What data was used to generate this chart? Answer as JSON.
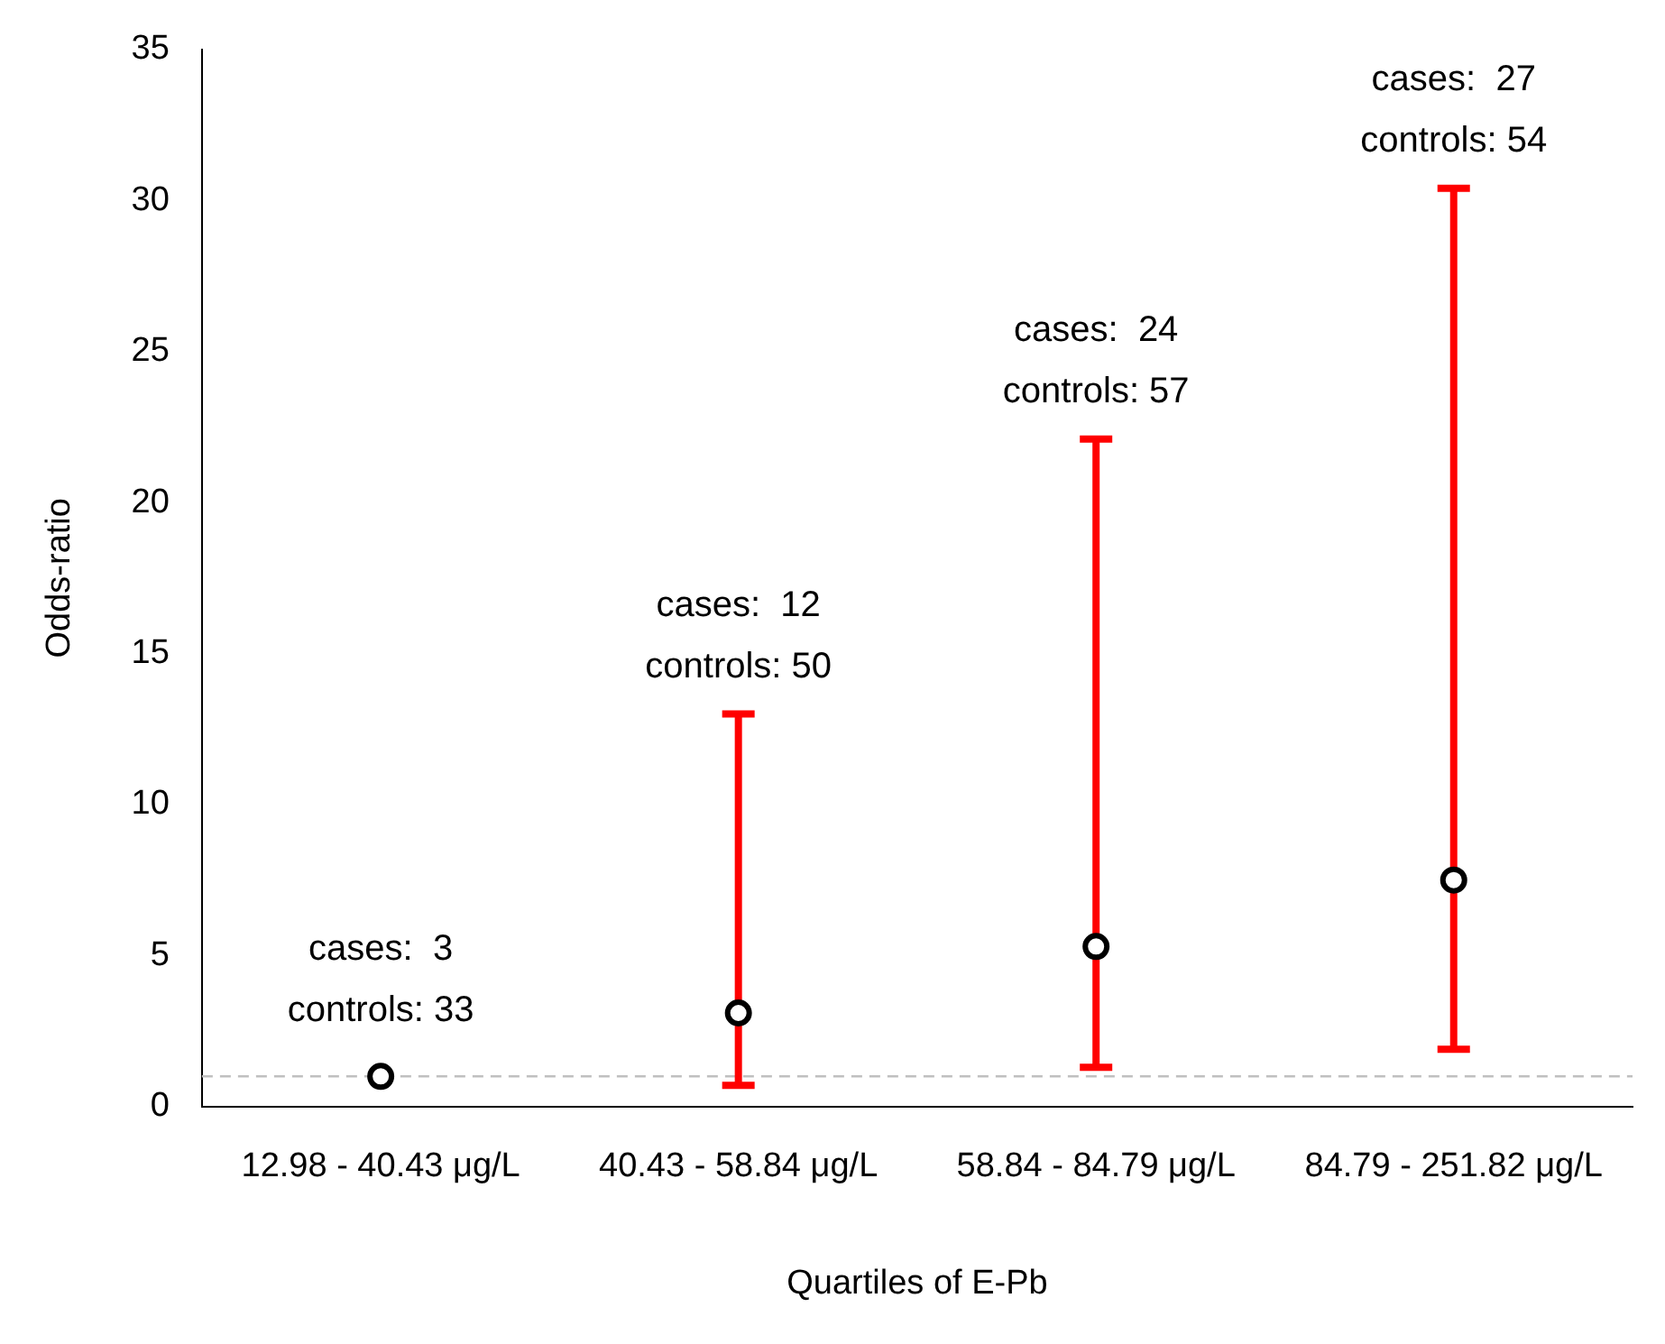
{
  "chart_data": {
    "type": "scatter",
    "xlabel": "Quartiles of E-Pb",
    "ylabel": "Odds-ratio",
    "categories": [
      "12.98 - 40.43 μg/L",
      "40.43 - 58.84 μg/L",
      "58.84 - 84.79 μg/L",
      "84.79 - 251.82 μg/L"
    ],
    "values": [
      1.0,
      3.1,
      5.3,
      7.5
    ],
    "errors": [
      null,
      [
        0.7,
        13.0
      ],
      [
        1.3,
        22.1
      ],
      [
        1.9,
        30.4
      ]
    ],
    "color": "#000000",
    "marker": "circle",
    "ylim": [
      0,
      35
    ],
    "yticks": [
      0,
      5,
      10,
      15,
      20,
      25,
      30,
      35
    ],
    "grid": false,
    "legend": false,
    "ref_lines": [
      {
        "axis": "y",
        "value": 1,
        "color": "#c0c0c0",
        "line_style": "dashed"
      }
    ],
    "annotations": [
      "cases:  3",
      "controls: 33",
      "cases:  12",
      "controls: 50",
      "cases:  24",
      "controls: 57",
      "cases:  27",
      "controls: 54"
    ]
  }
}
